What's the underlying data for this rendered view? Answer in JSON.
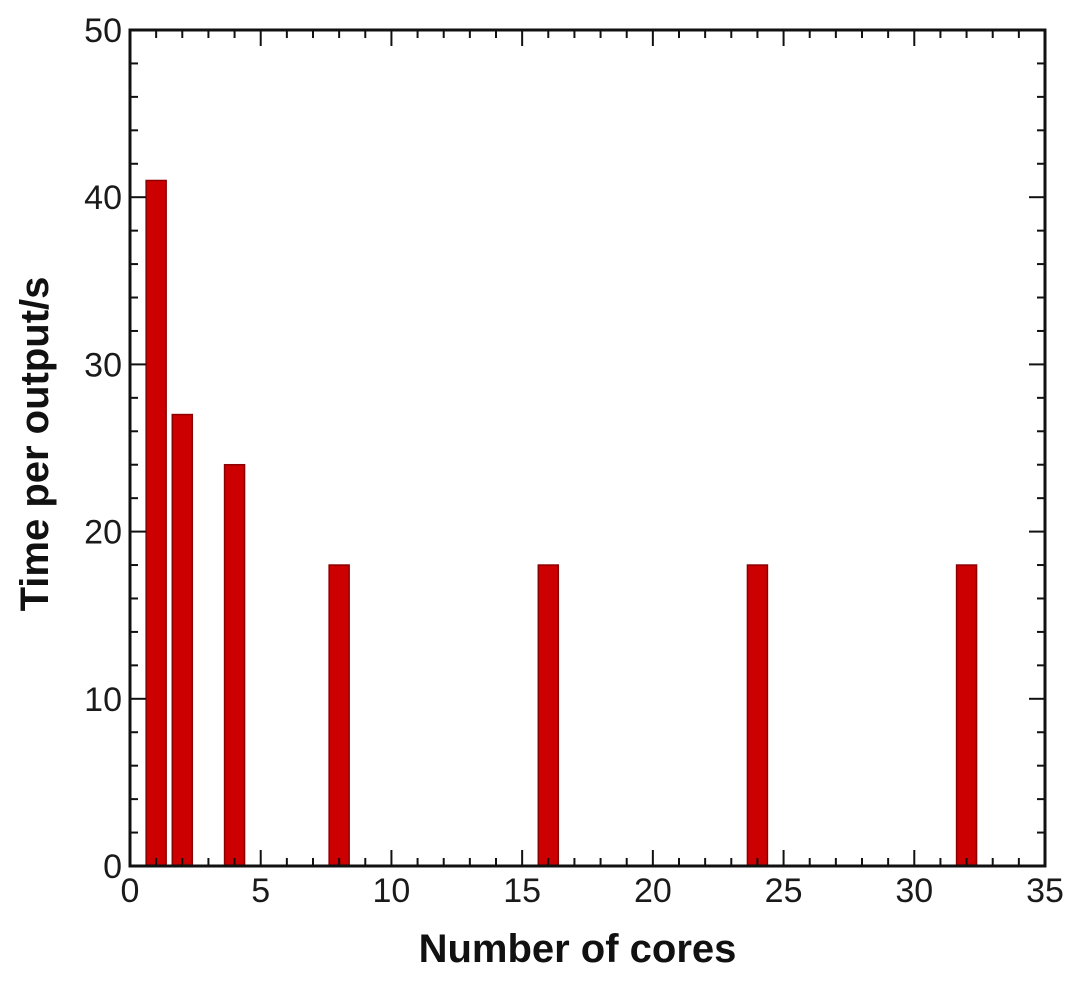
{
  "chart_data": {
    "type": "bar",
    "title": "",
    "xlabel": "Number of cores",
    "ylabel": "Time per output/s",
    "x": [
      1,
      2,
      4,
      8,
      16,
      24,
      32
    ],
    "values": [
      41,
      27,
      24,
      18,
      18,
      18,
      18
    ],
    "xlim": [
      0,
      35
    ],
    "ylim": [
      0,
      50
    ],
    "x_ticks": [
      0,
      5,
      10,
      15,
      20,
      25,
      30,
      35
    ],
    "y_ticks": [
      0,
      10,
      20,
      30,
      40,
      50
    ],
    "x_tick_labels": [
      "0",
      "5",
      "10",
      "15",
      "20",
      "25",
      "30",
      "35"
    ],
    "y_tick_labels": [
      "0",
      "10",
      "20",
      "30",
      "40",
      "50"
    ],
    "grid": false,
    "legend": "none",
    "bar_color": "#cc0000",
    "bar_edge_color": "#8b0000"
  }
}
